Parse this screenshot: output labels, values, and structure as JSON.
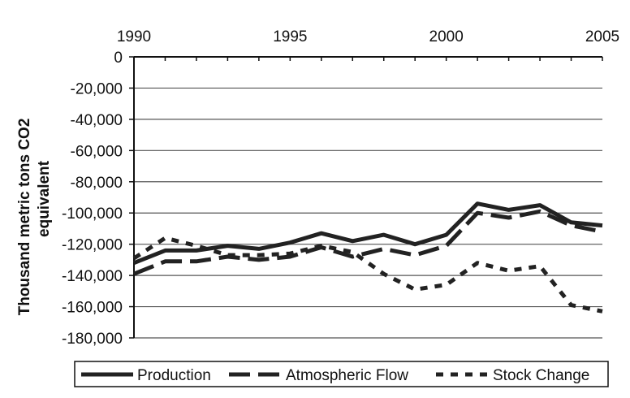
{
  "chart_data": {
    "type": "line",
    "title": "",
    "xlabel": "",
    "ylabel_lines": [
      "Thousand metric tons CO2",
      "equivalent"
    ],
    "x": [
      1990,
      1991,
      1992,
      1993,
      1994,
      1995,
      1996,
      1997,
      1998,
      1999,
      2000,
      2001,
      2002,
      2003,
      2004,
      2005
    ],
    "x_ticks": [
      1990,
      1995,
      2000,
      2005
    ],
    "x_tick_labels": [
      "1990",
      "1995",
      "2000",
      "2005"
    ],
    "x_axis_position": "top",
    "xlim": [
      1990,
      2005
    ],
    "y_ticks": [
      0,
      -20000,
      -40000,
      -60000,
      -80000,
      -100000,
      -120000,
      -140000,
      -160000,
      -180000
    ],
    "y_tick_labels": [
      "0",
      "-20,000",
      "-40,000",
      "-60,000",
      "-80,000",
      "-100,000",
      "-120,000",
      "-140,000",
      "-160,000",
      "-180,000"
    ],
    "ylim": [
      -180000,
      0
    ],
    "grid": "horizontal",
    "legend_position": "bottom",
    "series": [
      {
        "name": "Production",
        "style": "solid",
        "color": "#222222",
        "values": [
          -132000,
          -124000,
          -124000,
          -121000,
          -123000,
          -119000,
          -113000,
          -118000,
          -114000,
          -120000,
          -114000,
          -94000,
          -98000,
          -95000,
          -106000,
          -108000
        ]
      },
      {
        "name": "Atmospheric Flow",
        "style": "long-dash",
        "color": "#222222",
        "values": [
          -139000,
          -131000,
          -131000,
          -128000,
          -130000,
          -128000,
          -122000,
          -128000,
          -123000,
          -127000,
          -121000,
          -100000,
          -103000,
          -99000,
          -108000,
          -112000
        ]
      },
      {
        "name": "Stock Change",
        "style": "short-dash",
        "color": "#222222",
        "values": [
          -129000,
          -116000,
          -121000,
          -127000,
          -127000,
          -126000,
          -121000,
          -125000,
          -139000,
          -149000,
          -146000,
          -132000,
          -137000,
          -134000,
          -159000,
          -163000
        ]
      }
    ]
  }
}
